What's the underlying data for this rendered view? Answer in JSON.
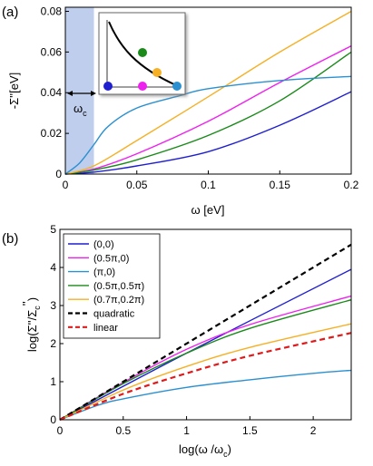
{
  "chart_data": [
    {
      "panel_label": "(a)",
      "type": "line",
      "xlabel": "ω [eV]",
      "ylabel": "-Σ''[eV]",
      "xlim": [
        0,
        0.2
      ],
      "ylim": [
        0,
        0.082
      ],
      "xticks": [
        0,
        0.05,
        0.1,
        0.15,
        0.2
      ],
      "xtick_labels": [
        "0",
        "0.05",
        "0.1",
        "0.15",
        "0.2"
      ],
      "yticks": [
        0,
        0.02,
        0.04,
        0.06,
        0.08
      ],
      "ytick_labels": [
        "0",
        "0.02",
        "0.04",
        "0.06",
        "0.08"
      ],
      "annotation": {
        "label": "ω",
        "subscript": "c",
        "omega_c": 0.02
      },
      "series": [
        {
          "color": "#1f1fd0",
          "x": [
            0,
            0.02,
            0.05,
            0.1,
            0.15,
            0.2
          ],
          "y": [
            0,
            0.001,
            0.004,
            0.011,
            0.024,
            0.0405
          ]
        },
        {
          "color": "#ee22ee",
          "x": [
            0,
            0.02,
            0.05,
            0.1,
            0.15,
            0.2
          ],
          "y": [
            0,
            0.0025,
            0.01,
            0.026,
            0.045,
            0.063
          ]
        },
        {
          "color": "#1a8a1a",
          "x": [
            0,
            0.02,
            0.05,
            0.1,
            0.15,
            0.2
          ],
          "y": [
            0,
            0.002,
            0.007,
            0.019,
            0.036,
            0.06
          ]
        },
        {
          "color": "#f5b025",
          "x": [
            0,
            0.02,
            0.05,
            0.1,
            0.15,
            0.2
          ],
          "y": [
            0,
            0.004,
            0.0165,
            0.038,
            0.06,
            0.08
          ]
        },
        {
          "color": "#2b90d0",
          "x": [
            0,
            0.01,
            0.02,
            0.03,
            0.05,
            0.08,
            0.1,
            0.15,
            0.2
          ],
          "y": [
            0,
            0.0055,
            0.0145,
            0.0235,
            0.0325,
            0.0385,
            0.042,
            0.046,
            0.048
          ]
        }
      ],
      "inset": {
        "markers": [
          {
            "color": "#1f1fd0"
          },
          {
            "color": "#ee22ee"
          },
          {
            "color": "#2b90d0"
          },
          {
            "color": "#1a8a1a"
          },
          {
            "color": "#f5b025"
          }
        ]
      }
    },
    {
      "panel_label": "(b)",
      "type": "line",
      "xlabel": "log(ω /ω",
      "xlabel_sub": "c",
      "xlabel_end": ")",
      "ylabel": "log(Σ''/Σ",
      "ylabel_sub": "c",
      "ylabel_sup": "''",
      "ylabel_end": ")",
      "xlim": [
        0,
        2.3
      ],
      "ylim": [
        0,
        5
      ],
      "xticks": [
        0,
        0.5,
        1,
        1.5,
        2
      ],
      "xtick_labels": [
        "0",
        "0.5",
        "1",
        "1.5",
        "2"
      ],
      "yticks": [
        0,
        1,
        2,
        3,
        4,
        5
      ],
      "ytick_labels": [
        "0",
        "1",
        "2",
        "3",
        "4",
        "5"
      ],
      "series": [
        {
          "name": "(0,0)",
          "color": "#1f1fd0",
          "dash": "",
          "x": [
            0,
            1,
            2.3
          ],
          "y": [
            0,
            1.75,
            3.95
          ]
        },
        {
          "name": "(0.5π,0)",
          "color": "#ee22ee",
          "dash": "",
          "x": [
            0,
            0.5,
            1,
            1.5,
            2.3
          ],
          "y": [
            0,
            0.98,
            1.85,
            2.5,
            3.25
          ]
        },
        {
          "name": "(π,0)",
          "color": "#2b90d0",
          "dash": "",
          "x": [
            0,
            0.3,
            0.5,
            1,
            1.5,
            2,
            2.3
          ],
          "y": [
            0,
            0.38,
            0.55,
            0.85,
            1.05,
            1.22,
            1.3
          ]
        },
        {
          "name": "(0.5π,0.5π)",
          "color": "#1a8a1a",
          "dash": "",
          "x": [
            0,
            0.5,
            1,
            1.5,
            2.3
          ],
          "y": [
            0,
            0.95,
            1.75,
            2.4,
            3.15
          ]
        },
        {
          "name": "(0.7π,0.2π)",
          "color": "#f5b025",
          "dash": "",
          "x": [
            0,
            0.5,
            1,
            1.5,
            2.3
          ],
          "y": [
            0,
            0.78,
            1.4,
            1.9,
            2.52
          ]
        },
        {
          "name": "quadratic",
          "color": "#000000",
          "dash": "6,4",
          "x": [
            0,
            2.3
          ],
          "y": [
            0,
            4.6
          ]
        },
        {
          "name": "linear",
          "color": "#e01a1a",
          "dash": "6,4",
          "x": [
            0,
            0.5,
            1,
            1.5,
            2.3
          ],
          "y": [
            0,
            0.68,
            1.22,
            1.68,
            2.28
          ]
        }
      ]
    }
  ]
}
